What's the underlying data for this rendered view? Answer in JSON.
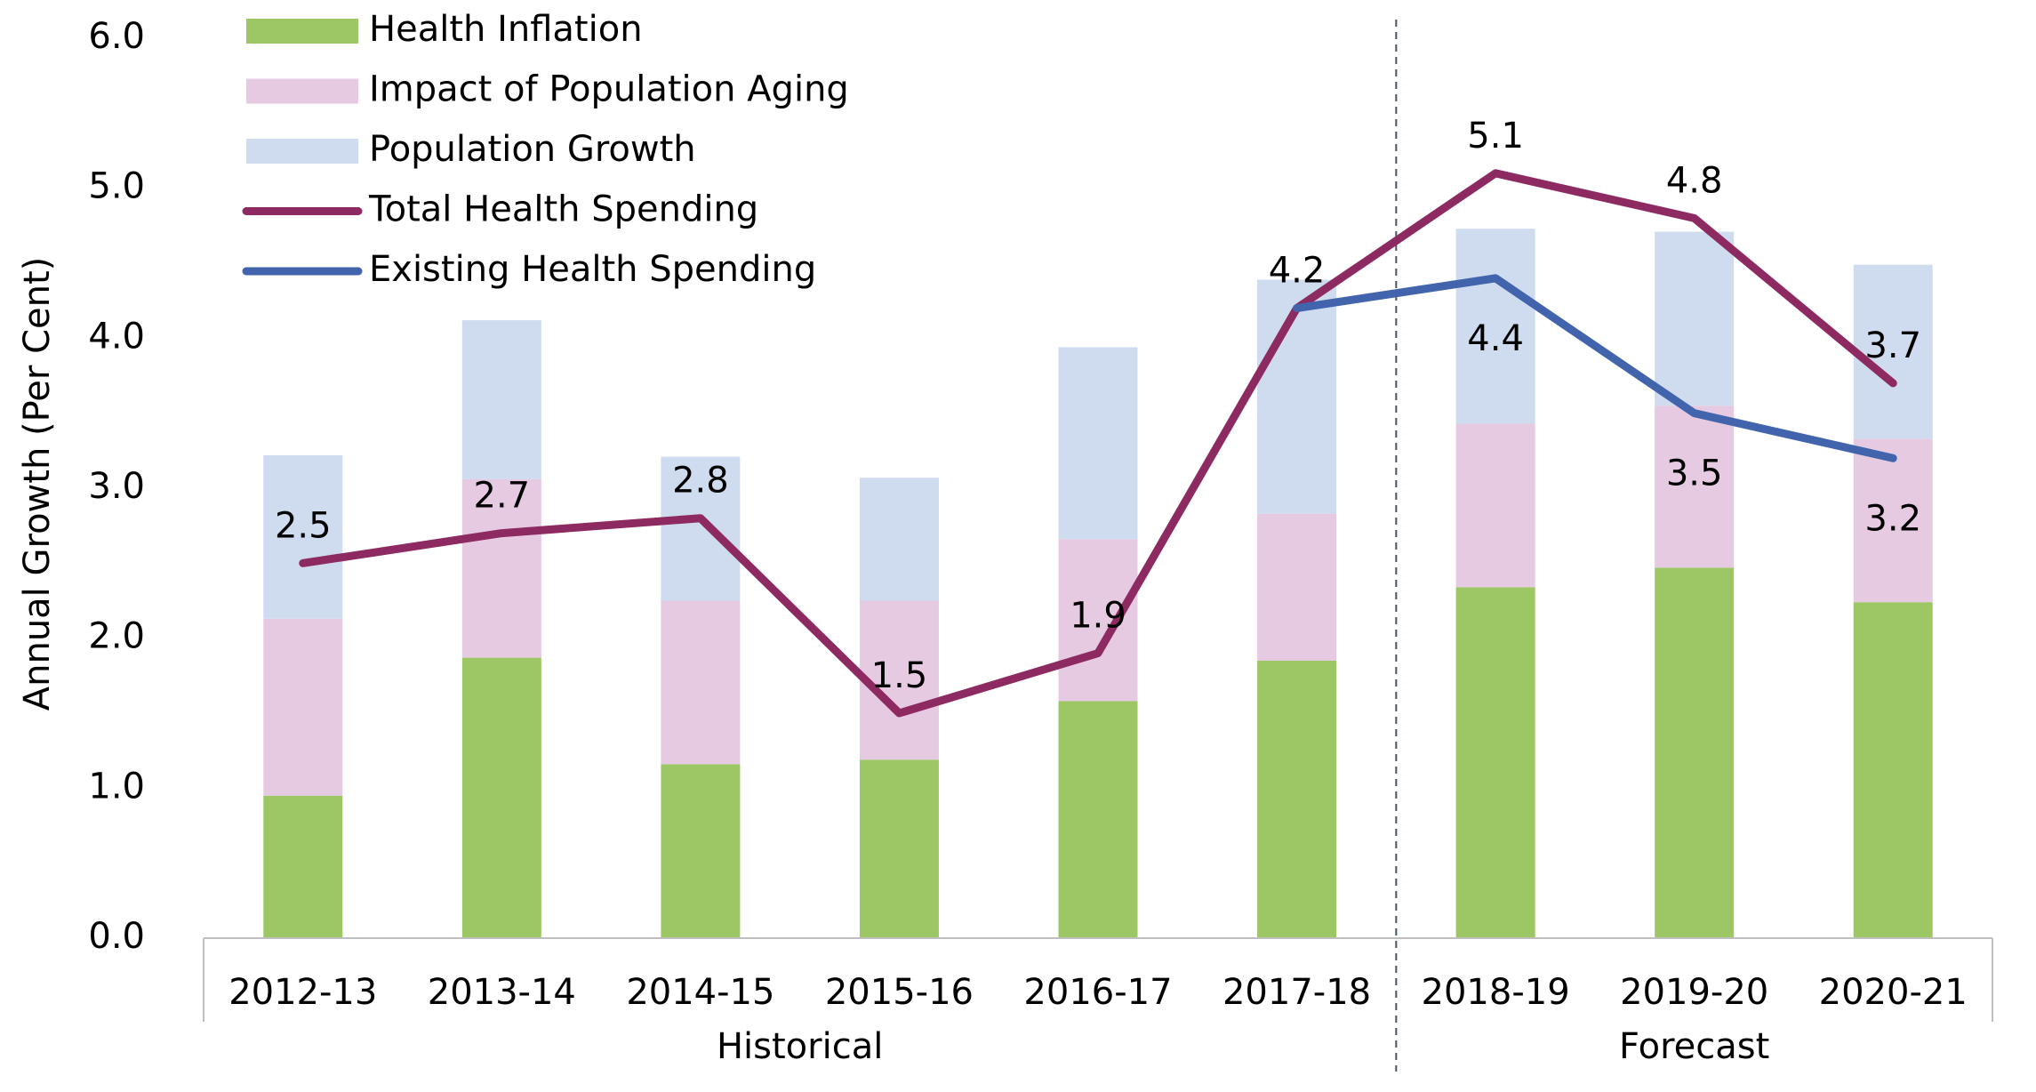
{
  "chart_data": {
    "type": "bar_line",
    "y_axis_label": "Annual Growth (Per Cent)",
    "categories": [
      "2012-13",
      "2013-14",
      "2014-15",
      "2015-16",
      "2016-17",
      "2017-18",
      "2018-19",
      "2019-20",
      "2020-21"
    ],
    "groups": [
      {
        "label": "Historical",
        "size": 6
      },
      {
        "label": "Forecast",
        "size": 3
      }
    ],
    "series": [
      {
        "name": "Health Inflation",
        "type": "bar",
        "color": "#9dc764",
        "values": [
          0.95,
          1.87,
          1.16,
          1.19,
          1.58,
          1.85,
          2.34,
          2.47,
          2.24
        ]
      },
      {
        "name": "Impact of Population Aging",
        "type": "bar",
        "color": "#e6cae2",
        "values": [
          1.18,
          1.19,
          1.09,
          1.06,
          1.08,
          0.98,
          1.09,
          1.08,
          1.09
        ]
      },
      {
        "name": "Population Growth",
        "type": "bar",
        "color": "#cfdbef",
        "values": [
          1.09,
          1.06,
          0.96,
          0.82,
          1.28,
          1.56,
          1.3,
          1.16,
          1.16
        ]
      },
      {
        "name": "Total Health Spending",
        "type": "line",
        "color": "#8e2a62",
        "values": [
          2.5,
          2.7,
          2.8,
          1.5,
          1.9,
          4.2,
          5.1,
          4.8,
          3.7
        ],
        "label_position": "above"
      },
      {
        "name": "Existing Health Spending",
        "type": "line",
        "color": "#4264ad",
        "values": [
          null,
          null,
          null,
          null,
          null,
          4.2,
          4.4,
          3.5,
          3.2
        ],
        "value_labels": [
          null,
          null,
          null,
          null,
          null,
          null,
          "4.4",
          "3.5",
          "3.2"
        ],
        "label_position": "below"
      }
    ],
    "ylim": [
      0,
      6
    ],
    "yticks": [
      {
        "value": 0,
        "label": "0.0"
      },
      {
        "value": 1,
        "label": "1.0"
      },
      {
        "value": 2,
        "label": "2.0"
      },
      {
        "value": 3,
        "label": "3.0"
      },
      {
        "value": 4,
        "label": "4.0"
      },
      {
        "value": 5,
        "label": "5.0"
      },
      {
        "value": 6,
        "label": "6.0"
      }
    ],
    "legend": "top-left"
  }
}
